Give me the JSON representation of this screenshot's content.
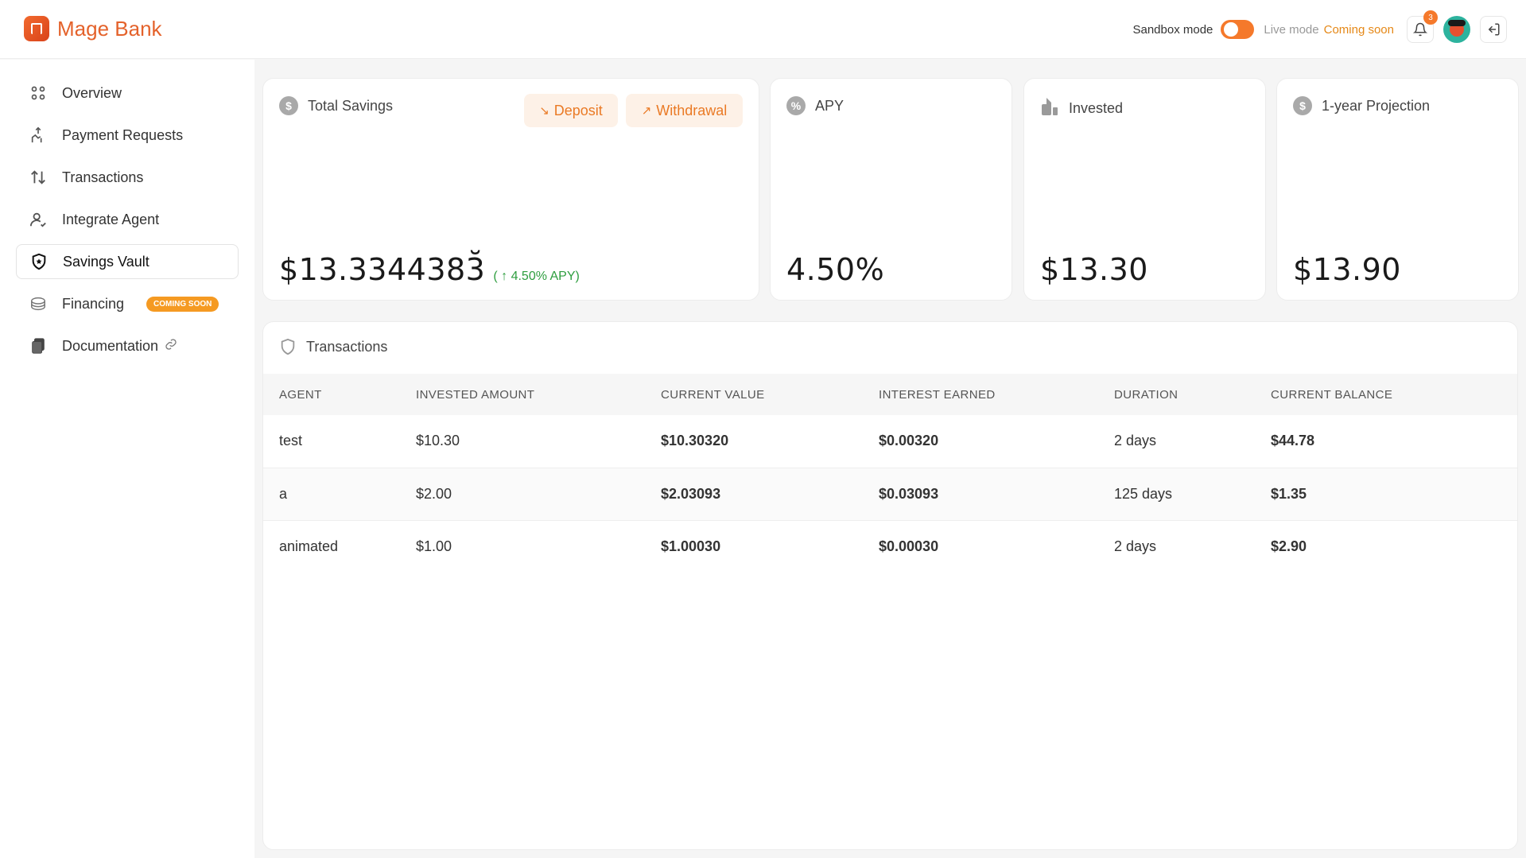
{
  "app": {
    "name": "Mage Bank"
  },
  "header": {
    "sandbox_label": "Sandbox mode",
    "live_label": "Live mode",
    "coming_soon": "Coming soon",
    "notification_count": "3",
    "toggle_on": true
  },
  "sidebar": {
    "items": [
      {
        "label": "Overview",
        "icon": "grid-icon"
      },
      {
        "label": "Payment Requests",
        "icon": "hand-money-icon"
      },
      {
        "label": "Transactions",
        "icon": "arrows-updown-icon"
      },
      {
        "label": "Integrate Agent",
        "icon": "user-check-icon"
      },
      {
        "label": "Savings Vault",
        "icon": "shield-icon",
        "active": true
      },
      {
        "label": "Financing",
        "icon": "coins-icon",
        "badge": "COMING SOON"
      },
      {
        "label": "Documentation",
        "icon": "docs-icon",
        "external": true
      }
    ]
  },
  "cards": {
    "total_savings": {
      "title": "Total Savings",
      "value": "$13.3344383̆",
      "value_main": "$13.334438",
      "value_last": "3̆",
      "change": "( ↑ 4.50% APY)"
    },
    "deposit_label": "Deposit",
    "withdrawal_label": "Withdrawal",
    "apy": {
      "title": "APY",
      "value": "4.50%"
    },
    "invested": {
      "title": "Invested",
      "value": "$13.30"
    },
    "projection": {
      "title": "1-year Projection",
      "value": "$13.90"
    }
  },
  "transactions": {
    "title": "Transactions",
    "columns": [
      "AGENT",
      "INVESTED AMOUNT",
      "CURRENT VALUE",
      "INTEREST EARNED",
      "DURATION",
      "CURRENT BALANCE"
    ],
    "rows": [
      {
        "agent": "test",
        "invested": "$10.30",
        "current": "$10.30320",
        "interest": "$0.00320",
        "duration": "2 days",
        "balance": "$44.78"
      },
      {
        "agent": "a",
        "invested": "$2.00",
        "current": "$2.03093",
        "interest": "$0.03093",
        "duration": "125 days",
        "balance": "$1.35"
      },
      {
        "agent": "animated",
        "invested": "$1.00",
        "current": "$1.00030",
        "interest": "$0.00030",
        "duration": "2 days",
        "balance": "$2.90"
      }
    ]
  },
  "colors": {
    "accent": "#f5792b",
    "brand": "#e4622b",
    "positive": "#13905a",
    "interest": "#1a5fe0"
  }
}
